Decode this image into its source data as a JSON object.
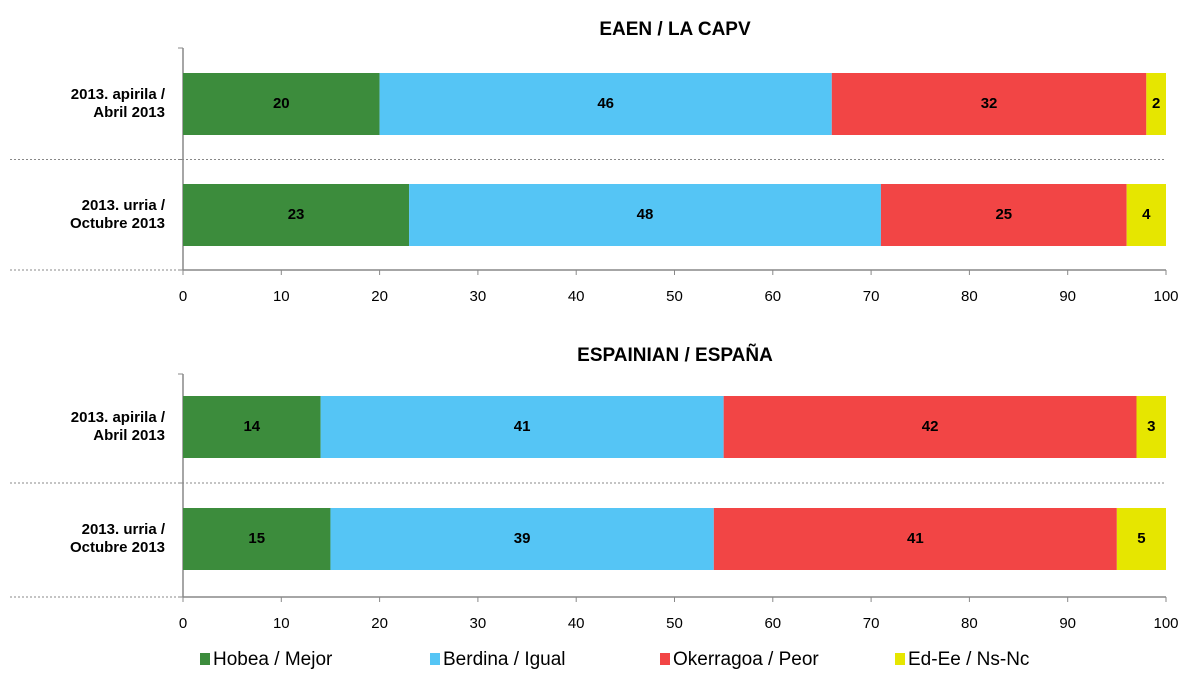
{
  "chart_data": [
    {
      "type": "bar",
      "orientation": "horizontal",
      "stacked": true,
      "title": "EAEN / LA CAPV",
      "categories": [
        "2013. apirila /\nAbril 2013",
        "2013. urria /\nOctubre 2013"
      ],
      "series": [
        {
          "name": "Hobea / Mejor",
          "color": "#3c8c3c",
          "values": [
            20,
            23
          ]
        },
        {
          "name": "Berdina / Igual",
          "color": "#55c5f5",
          "values": [
            46,
            48
          ]
        },
        {
          "name": "Okerragoa / Peor",
          "color": "#f24545",
          "values": [
            32,
            25
          ]
        },
        {
          "name": "Ed-Ee / Ns-Nc",
          "color": "#e6e600",
          "values": [
            2,
            4
          ]
        }
      ],
      "xlim": [
        0,
        100
      ],
      "xticks": [
        0,
        10,
        20,
        30,
        40,
        50,
        60,
        70,
        80,
        90,
        100
      ]
    },
    {
      "type": "bar",
      "orientation": "horizontal",
      "stacked": true,
      "title": "ESPAINIAN / ESPAÑA",
      "categories": [
        "2013. apirila /\nAbril 2013",
        "2013. urria /\nOctubre 2013"
      ],
      "series": [
        {
          "values": [
            14,
            15
          ]
        },
        {
          "values": [
            41,
            39
          ]
        },
        {
          "values": [
            42,
            41
          ]
        },
        {
          "values": [
            3,
            5
          ]
        }
      ],
      "xlim": [
        0,
        100
      ],
      "xticks": [
        0,
        10,
        20,
        30,
        40,
        50,
        60,
        70,
        80,
        90,
        100
      ]
    }
  ]
}
